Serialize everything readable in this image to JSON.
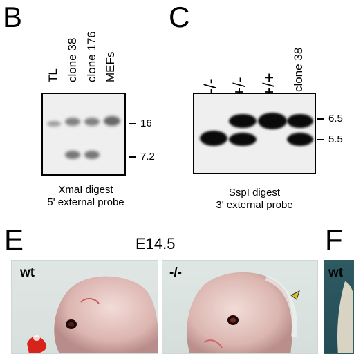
{
  "panel_B": {
    "letter": "B",
    "lanes": [
      "TL",
      "clone 38",
      "clone 176",
      "MEFs"
    ],
    "markers": [
      "16",
      "7.2"
    ],
    "caption_line1": "XmaI digest",
    "caption_line2": "5' external probe"
  },
  "panel_C": {
    "letter": "C",
    "lanes": [
      "-/-",
      "+/-",
      "+/+",
      "clone 38"
    ],
    "markers": [
      "6.5",
      "5.5"
    ],
    "caption_line1": "SspI digest",
    "caption_line2": "3' external probe"
  },
  "panel_E": {
    "letter": "E",
    "stage": "E14.5",
    "left_genotype": "wt",
    "right_genotype": "-/-"
  },
  "panel_F": {
    "letter": "F",
    "genotype": "wt"
  }
}
